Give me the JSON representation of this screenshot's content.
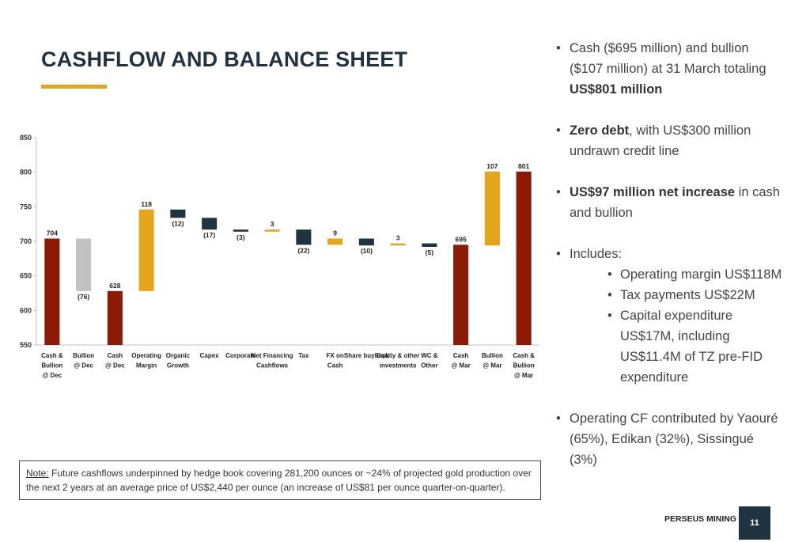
{
  "title": "CASHFLOW AND BALANCE SHEET",
  "colors": {
    "accent_gold": "#e5a51a",
    "dark_navy": "#1f3341",
    "maroon": "#8b1a07",
    "grey": "#c2c2c2"
  },
  "chart_data": {
    "type": "waterfall",
    "ylim": [
      550,
      850
    ],
    "yticks": [
      550,
      600,
      650,
      700,
      750,
      800,
      850
    ],
    "bars": [
      {
        "category": "Cash & Bullion @ Dec",
        "base": 550,
        "top": 704,
        "label": "704",
        "color": "maroon"
      },
      {
        "category": "Bullion @ Dec",
        "base": 628,
        "top": 704,
        "label": "(76)",
        "color": "grey"
      },
      {
        "category": "Cash @ Dec",
        "base": 550,
        "top": 628,
        "label": "628",
        "color": "maroon"
      },
      {
        "category": "Operating Margin",
        "base": 628,
        "top": 746,
        "label": "118",
        "color": "gold"
      },
      {
        "category": "Organic Growth",
        "base": 734,
        "top": 746,
        "label": "(12)",
        "color": "navy"
      },
      {
        "category": "Capex",
        "base": 717,
        "top": 734,
        "label": "(17)",
        "color": "navy"
      },
      {
        "category": "Corporate",
        "base": 714,
        "top": 717,
        "label": "(3)",
        "color": "navy"
      },
      {
        "category": "Net Financing Cashflows",
        "base": 714,
        "top": 717,
        "label": "3",
        "color": "gold"
      },
      {
        "category": "Tax",
        "base": 695,
        "top": 717,
        "label": "(22)",
        "color": "navy"
      },
      {
        "category": "FX on Cash",
        "base": 695,
        "top": 704,
        "label": "9",
        "color": "gold"
      },
      {
        "category": "Share buyback",
        "base": 694,
        "top": 704,
        "label": "(10)",
        "color": "navy"
      },
      {
        "category": "Equity & other investments",
        "base": 694,
        "top": 697,
        "label": "3",
        "color": "gold"
      },
      {
        "category": "WC & Other",
        "base": 692,
        "top": 697,
        "label": "(5)",
        "color": "navy"
      },
      {
        "category": "Cash @ Mar",
        "base": 550,
        "top": 695,
        "label": "695",
        "color": "maroon"
      },
      {
        "category": "Bullion @ Mar",
        "base": 694,
        "top": 801,
        "label": "107",
        "color": "gold"
      },
      {
        "category": "Cash & Bullion @ Mar",
        "base": 550,
        "top": 801,
        "label": "801",
        "color": "maroon"
      }
    ],
    "tick_lines": [
      [
        "Cash &",
        "Bullion",
        "@ Dec"
      ],
      [
        "Bullion",
        "@ Dec"
      ],
      [
        "Cash",
        "@ Dec"
      ],
      [
        "Operating",
        "Margin"
      ],
      [
        "Organic",
        "Growth"
      ],
      [
        "Capex"
      ],
      [
        "Corporate"
      ],
      [
        "Net Financing",
        "Cashflows"
      ],
      [
        "Tax"
      ],
      [
        "FX on",
        "Cash"
      ],
      [
        "Share buyback"
      ],
      [
        "Equity & other",
        "investments"
      ],
      [
        "WC &",
        "Other"
      ],
      [
        "Cash",
        "@ Mar"
      ],
      [
        "Bullion",
        "@ Mar"
      ],
      [
        "Cash &",
        "Bullion",
        "@ Mar"
      ]
    ]
  },
  "bullets": {
    "b1_pre": "Cash ($695 million) and bullion ($107 million) at 31 March totaling ",
    "b1_bold": "US$801 million",
    "b2_bold": "Zero debt",
    "b2_post": ", with US$300 million undrawn credit line",
    "b3_bold": "US$97 million net increase",
    "b3_post": " in cash and bullion",
    "b4": "Includes:",
    "b4_sub": [
      "Operating margin US$118M",
      "Tax payments US$22M",
      "Capital expenditure US$17M, including US$11.4M of TZ pre-FID expenditure"
    ],
    "b5": "Operating CF contributed by Yaouré (65%), Edikan (32%), Sissingué (3%)"
  },
  "note": {
    "label": "Note:",
    "text": " Future cashflows underpinned by hedge book covering  281,200 ounces or ~24% of projected gold production over the next 2 years at an average price of US$2,440 per ounce (an increase of US$81 per ounce quarter-on-quarter)."
  },
  "footer": {
    "brand": "PERSEUS MINING",
    "page": "11"
  }
}
